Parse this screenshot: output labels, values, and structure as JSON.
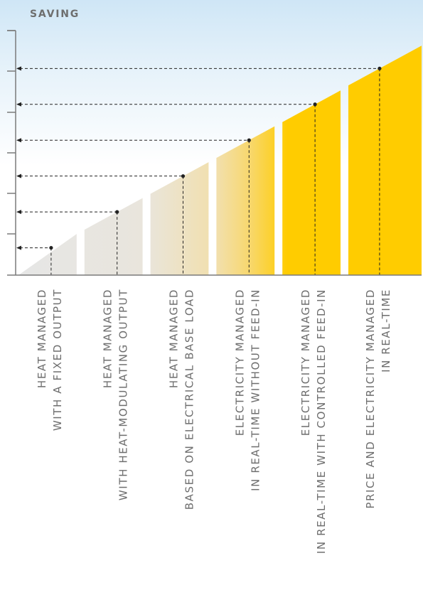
{
  "chart_data": {
    "type": "bar",
    "ylabel": "SAVING",
    "categories": [
      [
        "HEAT MANAGED",
        "WITH A FIXED OUTPUT"
      ],
      [
        "HEAT MANAGED",
        "WITH HEAT-MODULATING OUTPUT"
      ],
      [
        "HEAT MANAGED",
        "BASED ON ELECTRICAL BASE LOAD"
      ],
      [
        "ELECTRICITY MANAGED",
        "IN REAL-TIME WITHOUT FEED-IN"
      ],
      [
        "ELECTRICITY MANAGED",
        "IN REAL-TIME WITH CONTROLLED FEED-IN"
      ],
      [
        "PRICE AND ELECTRICITY MANAGED",
        "IN REAL-TIME"
      ]
    ],
    "values": [
      0.67,
      1.55,
      2.43,
      3.31,
      4.19,
      5.07
    ],
    "ylim": [
      0,
      6
    ],
    "yticks": [
      1,
      2,
      3,
      4,
      5,
      6
    ],
    "grid": false,
    "legend": "none",
    "colors": {
      "background_top": "#cfe6f6",
      "background_bottom": "#ffffff",
      "bar_light": "#e6e6e6",
      "bar_yellow": "#ffcc00",
      "axis": "#7a7a7a",
      "guide": "#222222",
      "label": "#6e6e6e"
    }
  }
}
